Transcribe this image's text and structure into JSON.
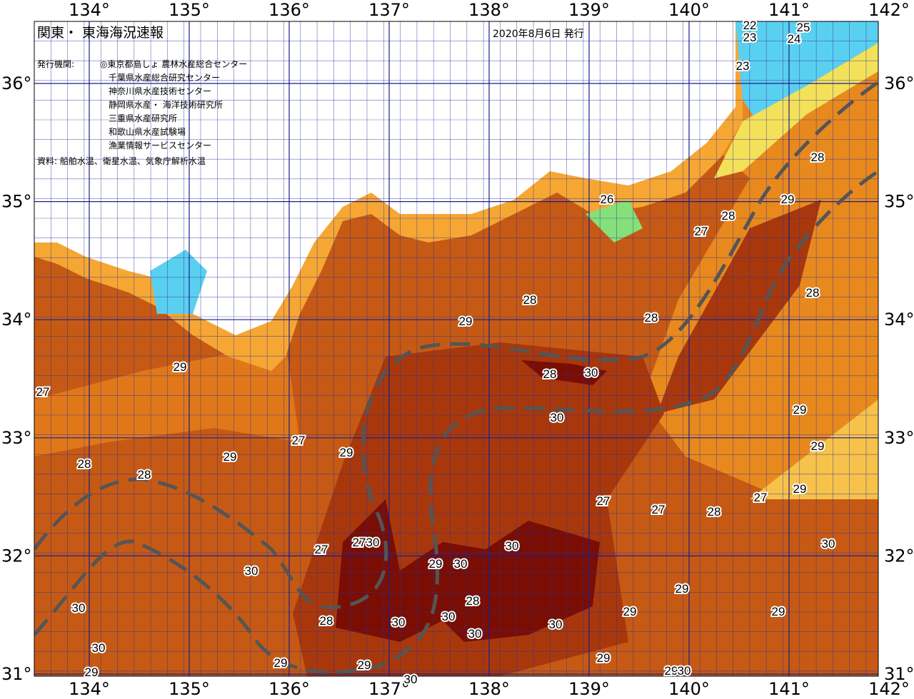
{
  "header": {
    "title": "関東・ 東海海況速報",
    "date": "2020年8月6日 発行"
  },
  "agencies": {
    "label": "発行機関:",
    "items": [
      "◎東京都島しょ 農林水産総合センター",
      "千葉県水産総合研究センター",
      "神奈川県水産技術センター",
      "静岡県水産・ 海洋技術研究所",
      "三重県水産研究所",
      "和歌山県水産試験場",
      "漁業情報サービスセンター"
    ]
  },
  "source": "資料: 船舶水温、衛星水温、気象庁解析水温",
  "map": {
    "lon_ticks": [
      {
        "value": 134,
        "label": "134°"
      },
      {
        "value": 135,
        "label": "135°"
      },
      {
        "value": 136,
        "label": "136°"
      },
      {
        "value": 137,
        "label": "137°"
      },
      {
        "value": 138,
        "label": "138°"
      },
      {
        "value": 139,
        "label": "139°"
      },
      {
        "value": 140,
        "label": "140°"
      },
      {
        "value": 141,
        "label": "141°"
      },
      {
        "value": 142,
        "label": "142°"
      }
    ],
    "lat_ticks": [
      {
        "value": 36,
        "label": "36°"
      },
      {
        "value": 35,
        "label": "35°"
      },
      {
        "value": 34,
        "label": "34°"
      },
      {
        "value": 33,
        "label": "33°"
      },
      {
        "value": 32,
        "label": "32°"
      },
      {
        "value": 31,
        "label": "31°"
      }
    ],
    "contour_labels": [
      22,
      23,
      25,
      24,
      23,
      26,
      28,
      29,
      28,
      27,
      28,
      28,
      29,
      28,
      29,
      27,
      28,
      30,
      30,
      29,
      27,
      29,
      29,
      28,
      28,
      29,
      27,
      29,
      27,
      27,
      28,
      27,
      30,
      30,
      30,
      27,
      29,
      30,
      30,
      29,
      28,
      30,
      29,
      29,
      28,
      30,
      30,
      30,
      30,
      30,
      29,
      29,
      29,
      29,
      29,
      30,
      30
    ]
  }
}
